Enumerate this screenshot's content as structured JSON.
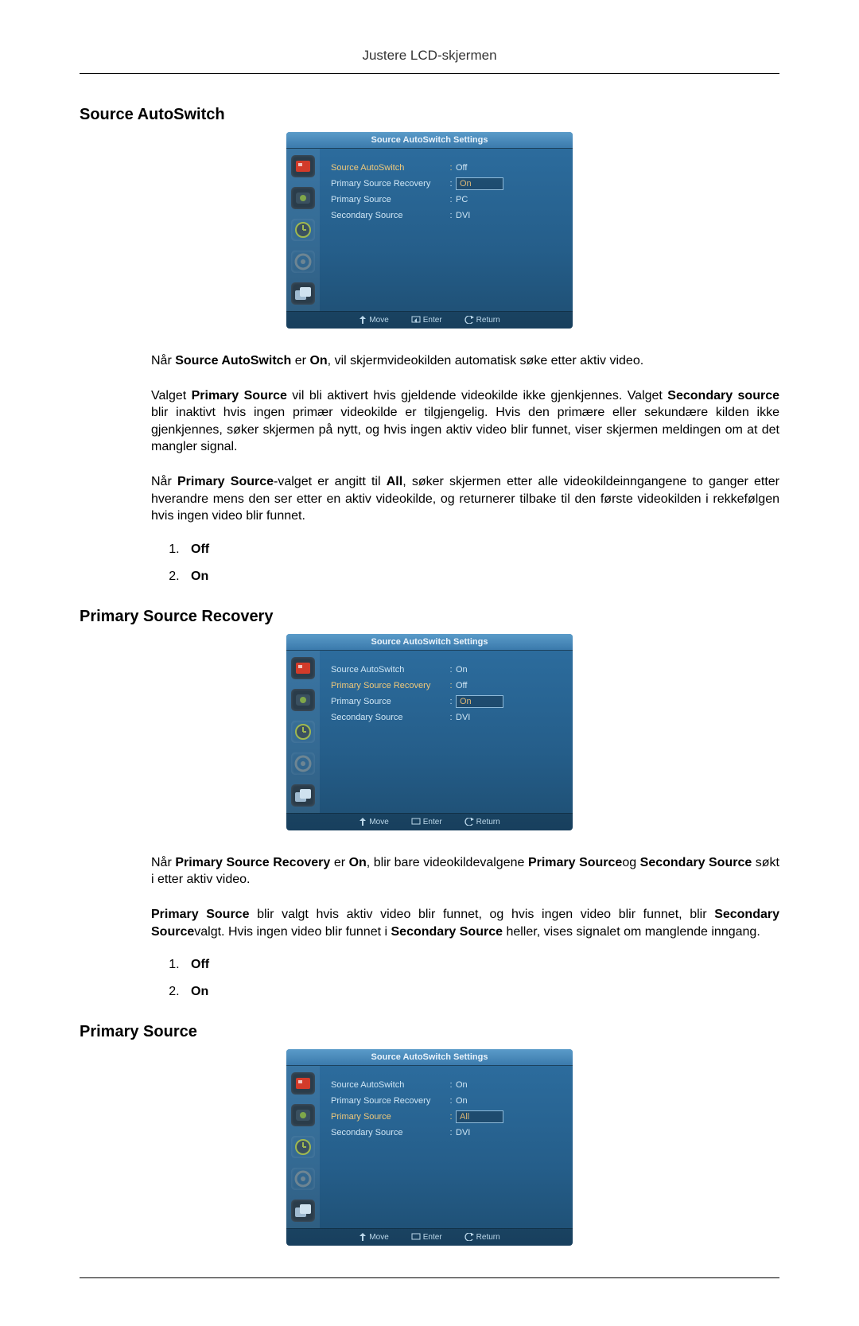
{
  "header_text": "Justere LCD-skjermen",
  "sections": {
    "source_autoswitch": {
      "heading": "Source AutoSwitch",
      "osd": {
        "title": "Source AutoSwitch Settings",
        "rows": [
          {
            "label": "Source AutoSwitch",
            "value": "Off",
            "highlight_label": true,
            "highlight_value": false,
            "value_boxed": false
          },
          {
            "label": "Primary Source Recovery",
            "value": "On",
            "highlight_label": false,
            "highlight_value": true,
            "value_boxed": true
          },
          {
            "label": "Primary Source",
            "value": "PC",
            "highlight_label": false,
            "highlight_value": false,
            "value_boxed": false
          },
          {
            "label": "Secondary Source",
            "value": "DVI",
            "highlight_label": false,
            "highlight_value": false,
            "value_boxed": false
          }
        ]
      },
      "para1_prefix": "Når ",
      "para1_b1": "Source AutoSwitch",
      "para1_mid1": " er ",
      "para1_b2": "On",
      "para1_suffix": ", vil skjermvideokilden automatisk søke etter aktiv video.",
      "para2_prefix": "Valget ",
      "para2_b1": "Primary Source",
      "para2_mid1": " vil bli aktivert hvis gjeldende videokilde ikke gjenkjennes. Valget ",
      "para2_b2": "Secondary source",
      "para2_suffix": " blir inaktivt hvis ingen primær videokilde er tilgjengelig. Hvis den primære eller sekundære kilden ikke gjenkjennes, søker skjermen på nytt, og hvis ingen aktiv video blir funnet, viser skjermen meldingen om at det mangler signal.",
      "para3_prefix": "Når ",
      "para3_b1": "Primary Source",
      "para3_mid1": "-valget er angitt til ",
      "para3_b2": "All",
      "para3_suffix": ", søker skjermen etter alle videokildeinngangene to ganger etter hverandre mens den ser etter en aktiv videokilde, og returnerer tilbake til den første videokilden i rekkefølgen hvis ingen video blir funnet.",
      "options": {
        "opt1": "Off",
        "opt2": "On"
      }
    },
    "primary_source_recovery": {
      "heading": "Primary Source Recovery",
      "osd": {
        "title": "Source AutoSwitch Settings",
        "rows": [
          {
            "label": "Source AutoSwitch",
            "value": "On",
            "highlight_label": false,
            "highlight_value": false,
            "value_boxed": false
          },
          {
            "label": "Primary Source Recovery",
            "value": "Off",
            "highlight_label": true,
            "highlight_value": false,
            "value_boxed": false
          },
          {
            "label": "Primary Source",
            "value": "On",
            "highlight_label": false,
            "highlight_value": true,
            "value_boxed": true
          },
          {
            "label": "Secondary Source",
            "value": "DVI",
            "highlight_label": false,
            "highlight_value": false,
            "value_boxed": false
          }
        ]
      },
      "para1_prefix": "Når ",
      "para1_b1": "Primary Source Recovery",
      "para1_mid1": " er ",
      "para1_b2": "On",
      "para1_mid2": ", blir bare videokildevalgene ",
      "para1_b3": "Primary Source",
      "para1_mid3": "og ",
      "para1_b4": "Secondary Source",
      "para1_suffix": " søkt i etter aktiv video.",
      "para2_b1": "Primary Source",
      "para2_mid1": " blir valgt hvis aktiv video blir funnet, og hvis ingen video blir funnet, blir ",
      "para2_b2": "Secondary Source",
      "para2_mid2": "valgt. Hvis ingen video blir funnet i ",
      "para2_b3": "Secondary Source",
      "para2_suffix": " heller, vises signalet om manglende inngang.",
      "options": {
        "opt1": "Off",
        "opt2": "On"
      }
    },
    "primary_source": {
      "heading": "Primary Source",
      "osd": {
        "title": "Source AutoSwitch Settings",
        "rows": [
          {
            "label": "Source AutoSwitch",
            "value": "On",
            "highlight_label": false,
            "highlight_value": false,
            "value_boxed": false
          },
          {
            "label": "Primary Source Recovery",
            "value": "On",
            "highlight_label": false,
            "highlight_value": false,
            "value_boxed": false
          },
          {
            "label": "Primary Source",
            "value": "All",
            "highlight_label": true,
            "highlight_value": true,
            "value_boxed": true
          },
          {
            "label": "Secondary Source",
            "value": "DVI",
            "highlight_label": false,
            "highlight_value": false,
            "value_boxed": false
          }
        ]
      }
    }
  },
  "osd_footer": {
    "move": "Move",
    "enter": "Enter",
    "return": "Return"
  },
  "icon_colors": {
    "picture": "#d23b2a",
    "input": "#7fa74a",
    "time": "#9fb850",
    "setup": "#6d8593",
    "multi": "#9fbad0"
  }
}
